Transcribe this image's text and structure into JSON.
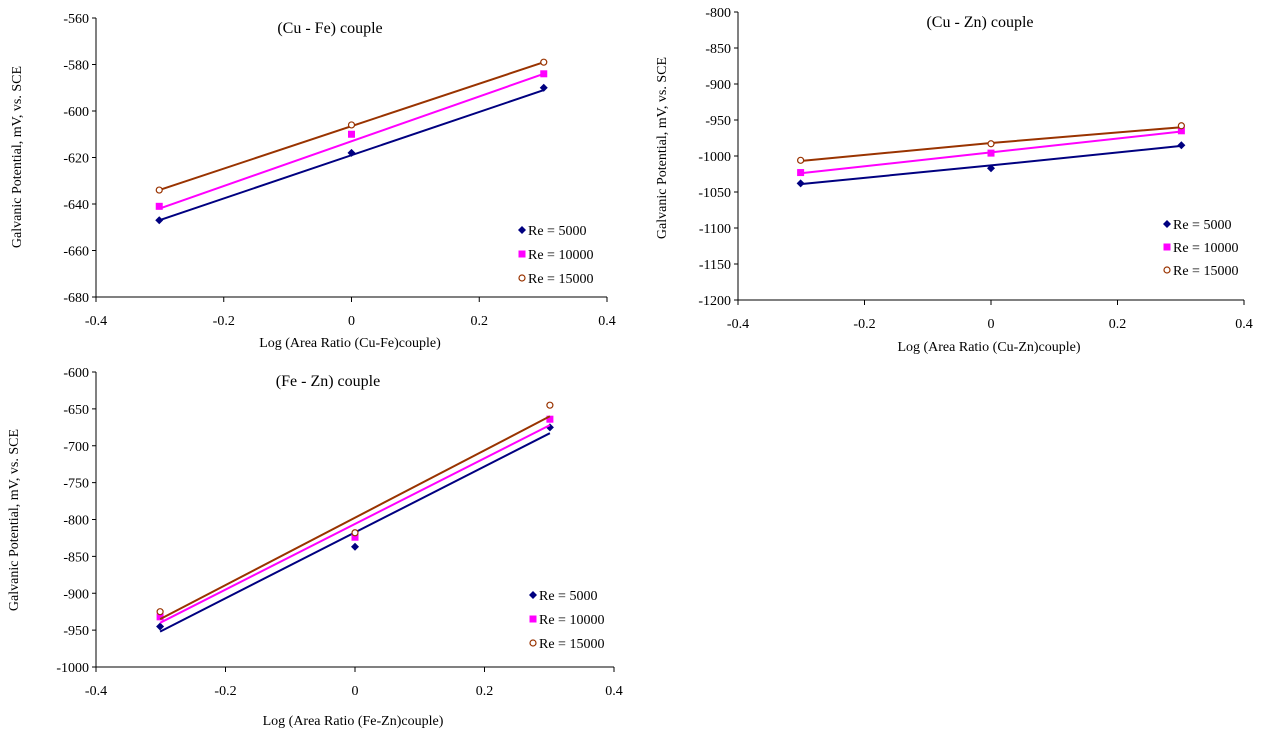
{
  "chart_data": [
    {
      "type": "scatter",
      "title": "(Cu - Fe) couple",
      "xlabel": "Log (Area Ratio (Cu-Fe)couple)",
      "ylabel": "Galvanic Potential, mV, vs. SCE",
      "xlim": [
        -0.4,
        0.4
      ],
      "ylim": [
        -680,
        -560
      ],
      "xticks": [
        "-0.4",
        "-0.2",
        "0",
        "0.2",
        "0.4"
      ],
      "yticks": [
        "-560",
        "-580",
        "-600",
        "-620",
        "-640",
        "-660",
        "-680"
      ],
      "legend_position": "bottom-right",
      "grid": false,
      "series": [
        {
          "name": "Re = 5000",
          "color": "#000080",
          "marker": "diamond",
          "x": [
            -0.301,
            0,
            0.301
          ],
          "y": [
            -647,
            -618,
            -590
          ],
          "trend": [
            [
              -0.301,
              -647
            ],
            [
              0.301,
              -591
            ]
          ]
        },
        {
          "name": "Re = 10000",
          "color": "#ff00ff",
          "marker": "square",
          "x": [
            -0.301,
            0,
            0.301
          ],
          "y": [
            -641,
            -610,
            -584
          ],
          "trend": [
            [
              -0.301,
              -642
            ],
            [
              0.301,
              -584
            ]
          ]
        },
        {
          "name": "Re = 15000",
          "color": "#993300",
          "marker": "circle",
          "x": [
            -0.301,
            0,
            0.301
          ],
          "y": [
            -634,
            -606,
            -579
          ],
          "trend": [
            [
              -0.301,
              -634
            ],
            [
              0.301,
              -579
            ]
          ]
        }
      ]
    },
    {
      "type": "scatter",
      "title": "(Cu - Zn) couple",
      "xlabel": "Log (Area Ratio (Cu-Zn)couple)",
      "ylabel": "Galvanic Potential, mV, vs. SCE",
      "xlim": [
        -0.4,
        0.4
      ],
      "ylim": [
        -1200,
        -800
      ],
      "xticks": [
        "-0.4",
        "-0.2",
        "0",
        "0.2",
        "0.4"
      ],
      "yticks": [
        "-800",
        "-850",
        "-900",
        "-950",
        "-1000",
        "-1050",
        "-1100",
        "-1150",
        "-1200"
      ],
      "legend_position": "bottom-right",
      "grid": false,
      "series": [
        {
          "name": "Re = 5000",
          "color": "#000080",
          "marker": "diamond",
          "x": [
            -0.301,
            0,
            0.301
          ],
          "y": [
            -1038,
            -1017,
            -985
          ],
          "trend": [
            [
              -0.301,
              -1039
            ],
            [
              0,
              -1013
            ],
            [
              0.301,
              -986
            ]
          ]
        },
        {
          "name": "Re = 10000",
          "color": "#ff00ff",
          "marker": "square",
          "x": [
            -0.301,
            0,
            0.301
          ],
          "y": [
            -1023,
            -996,
            -965
          ],
          "trend": [
            [
              -0.301,
              -1024
            ],
            [
              0,
              -995
            ],
            [
              0.301,
              -966
            ]
          ]
        },
        {
          "name": "Re = 15000",
          "color": "#993300",
          "marker": "circle",
          "x": [
            -0.301,
            0,
            0.301
          ],
          "y": [
            -1006,
            -983,
            -958
          ],
          "trend": [
            [
              -0.301,
              -1007
            ],
            [
              0,
              -982
            ],
            [
              0.301,
              -960
            ]
          ]
        }
      ]
    },
    {
      "type": "scatter",
      "title": "(Fe - Zn) couple",
      "xlabel": "Log (Area Ratio (Fe-Zn)couple)",
      "ylabel": "Galvanic Potential, mV, vs. SCE",
      "xlim": [
        -0.4,
        0.4
      ],
      "ylim": [
        -1000,
        -600
      ],
      "xticks": [
        "-0.4",
        "-0.2",
        "0",
        "0.2",
        "0.4"
      ],
      "yticks": [
        "-600",
        "-650",
        "-700",
        "-750",
        "-800",
        "-850",
        "-900",
        "-950",
        "-1000"
      ],
      "legend_position": "bottom-right",
      "grid": false,
      "series": [
        {
          "name": "Re = 5000",
          "color": "#000080",
          "marker": "diamond",
          "x": [
            -0.301,
            0,
            0.301
          ],
          "y": [
            -945,
            -837,
            -675
          ],
          "trend": [
            [
              -0.301,
              -952
            ],
            [
              0.301,
              -683
            ]
          ]
        },
        {
          "name": "Re = 10000",
          "color": "#ff00ff",
          "marker": "square",
          "x": [
            -0.301,
            0,
            0.301
          ],
          "y": [
            -932,
            -824,
            -664
          ],
          "trend": [
            [
              -0.301,
              -940
            ],
            [
              0.301,
              -672
            ]
          ]
        },
        {
          "name": "Re = 15000",
          "color": "#993300",
          "marker": "circle",
          "x": [
            -0.301,
            0,
            0.301
          ],
          "y": [
            -925,
            -818,
            -645
          ],
          "trend": [
            [
              -0.301,
              -935
            ],
            [
              0.301,
              -660
            ]
          ]
        }
      ]
    }
  ]
}
